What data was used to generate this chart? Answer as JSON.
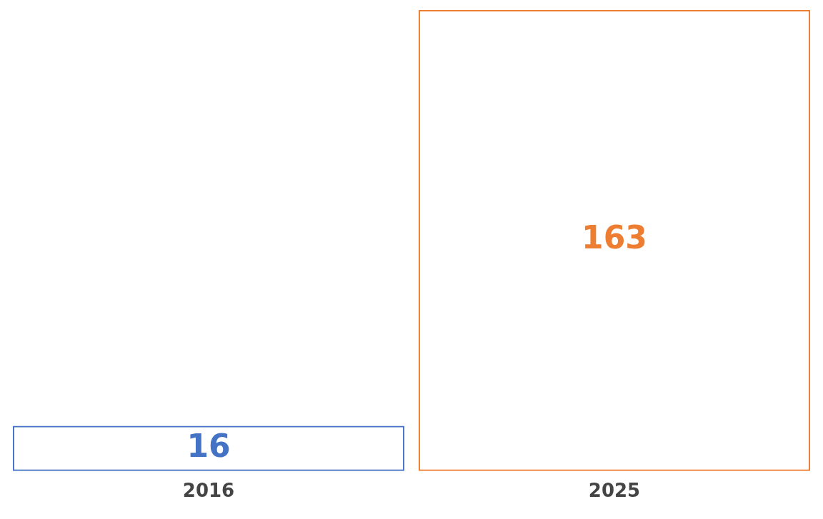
{
  "chart_data": {
    "type": "bar",
    "categories": [
      "2016",
      "2025"
    ],
    "values": [
      16,
      163
    ],
    "colors": [
      "#4472c4",
      "#ed7d31"
    ],
    "data_labels": true,
    "grid": false,
    "legend": false
  }
}
